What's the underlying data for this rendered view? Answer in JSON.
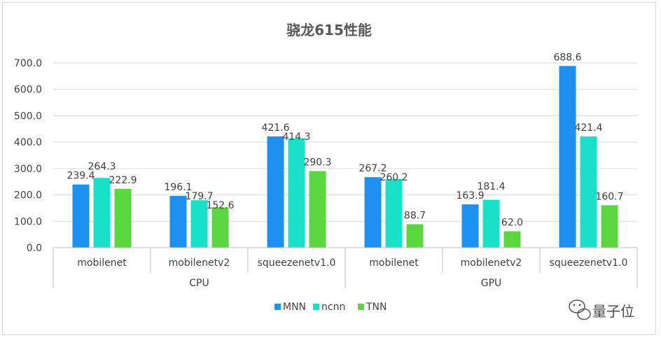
{
  "chart_data": {
    "type": "bar",
    "title": "骁龙615性能",
    "groups": [
      "CPU",
      "GPU"
    ],
    "categories": [
      "mobilenet",
      "mobilenetv2",
      "squeezenetv1.0",
      "mobilenet",
      "mobilenetv2",
      "squeezenetv1.0"
    ],
    "series": [
      {
        "name": "MNN",
        "color": "#1e90f0",
        "values": [
          239.4,
          196.1,
          421.6,
          267.2,
          163.9,
          688.6
        ],
        "labels": [
          "239.4",
          "196.1",
          "421.6",
          "267.2",
          "163.9",
          "688.6"
        ]
      },
      {
        "name": "ncnn",
        "color": "#19e0c8",
        "values": [
          264.3,
          179.7,
          414.3,
          260.2,
          181.4,
          421.4
        ],
        "labels": [
          "264.3",
          "179.7",
          "414.3",
          "260.2",
          "181.4",
          "421.4"
        ]
      },
      {
        "name": "TNN",
        "color": "#5cd63e",
        "values": [
          222.9,
          152.6,
          290.3,
          88.7,
          62.0,
          160.7
        ],
        "labels": [
          "222.9",
          "152.6",
          "290.3",
          "88.7",
          "62.0",
          "160.7"
        ]
      }
    ],
    "yticks": [
      "0.0",
      "100.0",
      "200.0",
      "300.0",
      "400.0",
      "500.0",
      "600.0",
      "700.0"
    ],
    "ylim": [
      0,
      700
    ],
    "grid": true,
    "legend_position": "bottom"
  },
  "watermark": {
    "text": "量子位",
    "icon": "wechat-icon"
  }
}
